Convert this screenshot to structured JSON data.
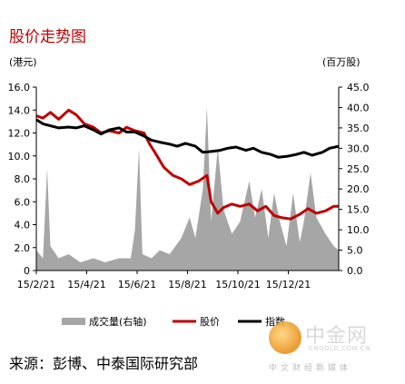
{
  "title": "股价走势图",
  "left_unit": "(港元)",
  "right_unit": "(百万股)",
  "source": "来源：彭博、中泰国际研究部",
  "watermark": {
    "name": "中金网",
    "url": "CNGOLD.COM.CN",
    "tagline": "中文财经新媒体",
    "logo_icon": "gold-coin-logo-icon"
  },
  "chart_data": {
    "type": "line",
    "x_tick_labels": [
      "15/2/21",
      "15/4/21",
      "15/6/21",
      "15/8/21",
      "15/10/21",
      "15/12/21"
    ],
    "y_left_ticks": [
      "0",
      "2.0",
      "4.0",
      "6.0",
      "8.0",
      "10.0",
      "12.0",
      "14.0",
      "16.0"
    ],
    "y_right_ticks": [
      "0.0",
      "5.0",
      "10.0",
      "15.0",
      "20.0",
      "25.0",
      "30.0",
      "35.0",
      "40.0",
      "45.0"
    ],
    "ylim_left": [
      0,
      16
    ],
    "ylim_right": [
      0,
      45
    ],
    "x_range": [
      "2015-02-21",
      "2016-02-21"
    ],
    "legend_position": "bottom",
    "series": [
      {
        "name": "成交量(右轴)",
        "axis": "right",
        "kind": "area",
        "color": "#a6a6a6",
        "points": [
          [
            "2015-02-21",
            5
          ],
          [
            "2015-03-01",
            3
          ],
          [
            "2015-03-06",
            25
          ],
          [
            "2015-03-10",
            6
          ],
          [
            "2015-03-20",
            3
          ],
          [
            "2015-04-01",
            4
          ],
          [
            "2015-04-15",
            2
          ],
          [
            "2015-05-01",
            3
          ],
          [
            "2015-05-15",
            2
          ],
          [
            "2015-06-01",
            3
          ],
          [
            "2015-06-15",
            3
          ],
          [
            "2015-06-20",
            10
          ],
          [
            "2015-06-25",
            30
          ],
          [
            "2015-06-29",
            4
          ],
          [
            "2015-07-10",
            3
          ],
          [
            "2015-07-20",
            5
          ],
          [
            "2015-08-01",
            4
          ],
          [
            "2015-08-15",
            8
          ],
          [
            "2015-08-25",
            13
          ],
          [
            "2015-09-01",
            8
          ],
          [
            "2015-09-10",
            20
          ],
          [
            "2015-09-15",
            40
          ],
          [
            "2015-09-20",
            12
          ],
          [
            "2015-09-28",
            30
          ],
          [
            "2015-10-05",
            15
          ],
          [
            "2015-10-15",
            9
          ],
          [
            "2015-10-25",
            12
          ],
          [
            "2015-11-05",
            22
          ],
          [
            "2015-11-12",
            13
          ],
          [
            "2015-11-20",
            20
          ],
          [
            "2015-11-28",
            8
          ],
          [
            "2015-12-05",
            19
          ],
          [
            "2015-12-12",
            12
          ],
          [
            "2015-12-20",
            6
          ],
          [
            "2015-12-28",
            19
          ],
          [
            "2016-01-05",
            7
          ],
          [
            "2016-01-10",
            12
          ],
          [
            "2016-01-18",
            24
          ],
          [
            "2016-01-25",
            13
          ],
          [
            "2016-02-05",
            9
          ],
          [
            "2016-02-15",
            6
          ],
          [
            "2016-02-21",
            5
          ]
        ]
      },
      {
        "name": "股价",
        "axis": "left",
        "kind": "line",
        "color": "#c00000",
        "points": [
          [
            "2015-02-21",
            13.5
          ],
          [
            "2015-03-01",
            13.3
          ],
          [
            "2015-03-10",
            13.8
          ],
          [
            "2015-03-20",
            13.2
          ],
          [
            "2015-04-01",
            14.0
          ],
          [
            "2015-04-10",
            13.6
          ],
          [
            "2015-04-20",
            12.8
          ],
          [
            "2015-05-01",
            12.5
          ],
          [
            "2015-05-10",
            12.0
          ],
          [
            "2015-05-20",
            12.2
          ],
          [
            "2015-06-01",
            12.0
          ],
          [
            "2015-06-10",
            12.5
          ],
          [
            "2015-06-20",
            12.2
          ],
          [
            "2015-07-01",
            12.0
          ],
          [
            "2015-07-08",
            11.0
          ],
          [
            "2015-07-15",
            10.2
          ],
          [
            "2015-07-25",
            9.0
          ],
          [
            "2015-08-05",
            8.3
          ],
          [
            "2015-08-15",
            8.0
          ],
          [
            "2015-08-25",
            7.5
          ],
          [
            "2015-09-05",
            7.8
          ],
          [
            "2015-09-15",
            8.3
          ],
          [
            "2015-09-20",
            6.0
          ],
          [
            "2015-09-28",
            5.0
          ],
          [
            "2015-10-05",
            5.5
          ],
          [
            "2015-10-15",
            5.8
          ],
          [
            "2015-10-25",
            5.6
          ],
          [
            "2015-11-05",
            5.8
          ],
          [
            "2015-11-15",
            5.2
          ],
          [
            "2015-11-25",
            5.6
          ],
          [
            "2015-12-05",
            4.8
          ],
          [
            "2015-12-15",
            4.6
          ],
          [
            "2015-12-25",
            4.5
          ],
          [
            "2016-01-05",
            4.9
          ],
          [
            "2016-01-15",
            5.4
          ],
          [
            "2016-01-25",
            5.0
          ],
          [
            "2016-02-05",
            5.2
          ],
          [
            "2016-02-15",
            5.6
          ],
          [
            "2016-02-21",
            5.6
          ]
        ]
      },
      {
        "name": "指数",
        "axis": "right",
        "kind": "line",
        "color": "#000000",
        "points": [
          [
            "2015-02-21",
            37.0
          ],
          [
            "2015-03-01",
            36.0
          ],
          [
            "2015-03-10",
            35.5
          ],
          [
            "2015-03-20",
            35.0
          ],
          [
            "2015-04-01",
            35.2
          ],
          [
            "2015-04-10",
            35.0
          ],
          [
            "2015-04-20",
            35.5
          ],
          [
            "2015-05-01",
            34.5
          ],
          [
            "2015-05-10",
            33.5
          ],
          [
            "2015-05-20",
            34.5
          ],
          [
            "2015-06-01",
            35.0
          ],
          [
            "2015-06-10",
            34.0
          ],
          [
            "2015-06-20",
            34.0
          ],
          [
            "2015-07-01",
            33.0
          ],
          [
            "2015-07-10",
            32.0
          ],
          [
            "2015-07-20",
            31.5
          ],
          [
            "2015-08-01",
            31.0
          ],
          [
            "2015-08-10",
            30.5
          ],
          [
            "2015-08-20",
            31.2
          ],
          [
            "2015-09-01",
            30.5
          ],
          [
            "2015-09-10",
            29.0
          ],
          [
            "2015-09-20",
            29.2
          ],
          [
            "2015-10-01",
            29.5
          ],
          [
            "2015-10-10",
            30.0
          ],
          [
            "2015-10-20",
            30.3
          ],
          [
            "2015-11-01",
            29.5
          ],
          [
            "2015-11-10",
            30.0
          ],
          [
            "2015-11-20",
            29.0
          ],
          [
            "2015-12-01",
            28.5
          ],
          [
            "2015-12-10",
            27.8
          ],
          [
            "2015-12-20",
            28.0
          ],
          [
            "2016-01-01",
            28.5
          ],
          [
            "2016-01-10",
            29.0
          ],
          [
            "2016-01-20",
            28.3
          ],
          [
            "2016-02-01",
            29.0
          ],
          [
            "2016-02-10",
            30.0
          ],
          [
            "2016-02-21",
            30.5
          ]
        ]
      }
    ]
  }
}
